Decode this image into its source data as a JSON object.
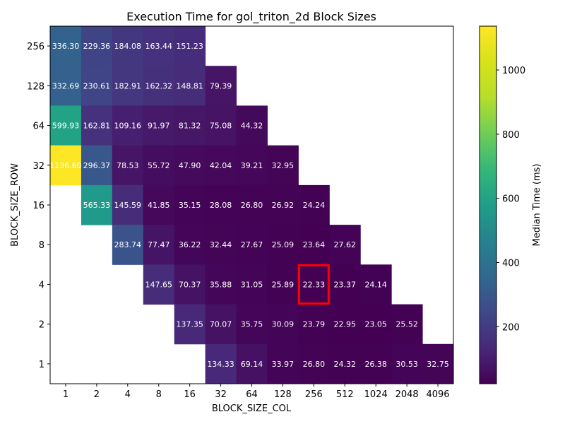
{
  "chart_data": {
    "type": "heatmap",
    "title": "Execution Time for gol_triton_2d Block Sizes",
    "xlabel": "BLOCK_SIZE_COL",
    "ylabel": "BLOCK_SIZE_ROW",
    "x_categories": [
      "1",
      "2",
      "4",
      "8",
      "16",
      "32",
      "64",
      "128",
      "256",
      "512",
      "1024",
      "2048",
      "4096"
    ],
    "y_categories": [
      "256",
      "128",
      "64",
      "32",
      "16",
      "8",
      "4",
      "2",
      "1"
    ],
    "values": [
      [
        336.3,
        229.36,
        184.08,
        163.44,
        151.23,
        null,
        null,
        null,
        null,
        null,
        null,
        null,
        null
      ],
      [
        332.69,
        230.61,
        182.91,
        162.32,
        148.81,
        79.39,
        null,
        null,
        null,
        null,
        null,
        null,
        null
      ],
      [
        599.93,
        162.81,
        109.16,
        91.97,
        81.32,
        75.08,
        44.32,
        null,
        null,
        null,
        null,
        null,
        null
      ],
      [
        1136.6,
        296.37,
        78.53,
        55.72,
        47.9,
        42.04,
        39.21,
        32.95,
        null,
        null,
        null,
        null,
        null
      ],
      [
        null,
        565.33,
        145.59,
        41.85,
        35.15,
        28.08,
        26.8,
        26.92,
        24.24,
        null,
        null,
        null,
        null
      ],
      [
        null,
        null,
        283.74,
        77.47,
        36.22,
        32.44,
        27.67,
        25.09,
        23.64,
        27.62,
        null,
        null,
        null
      ],
      [
        null,
        null,
        null,
        147.65,
        70.37,
        35.88,
        31.05,
        25.89,
        22.33,
        23.37,
        24.14,
        null,
        null
      ],
      [
        null,
        null,
        null,
        null,
        137.35,
        70.07,
        35.75,
        30.09,
        23.79,
        22.95,
        23.05,
        25.52,
        null
      ],
      [
        null,
        null,
        null,
        null,
        null,
        134.33,
        69.14,
        33.97,
        26.8,
        24.32,
        26.38,
        30.53,
        32.75
      ]
    ],
    "cell_labels": [
      [
        "336.30",
        "229.36",
        "184.08",
        "163.44",
        "151.23",
        "",
        "",
        "",
        "",
        "",
        "",
        "",
        ""
      ],
      [
        "332.69",
        "230.61",
        "182.91",
        "162.32",
        "148.81",
        "79.39",
        "",
        "",
        "",
        "",
        "",
        "",
        ""
      ],
      [
        "599.93",
        "162.81",
        "109.16",
        "91.97",
        "81.32",
        "75.08",
        "44.32",
        "",
        "",
        "",
        "",
        "",
        ""
      ],
      [
        "1136.60",
        "296.37",
        "78.53",
        "55.72",
        "47.90",
        "42.04",
        "39.21",
        "32.95",
        "",
        "",
        "",
        "",
        ""
      ],
      [
        "",
        "565.33",
        "145.59",
        "41.85",
        "35.15",
        "28.08",
        "26.80",
        "26.92",
        "24.24",
        "",
        "",
        "",
        ""
      ],
      [
        "",
        "",
        "283.74",
        "77.47",
        "36.22",
        "32.44",
        "27.67",
        "25.09",
        "23.64",
        "27.62",
        "",
        "",
        ""
      ],
      [
        "",
        "",
        "",
        "147.65",
        "70.37",
        "35.88",
        "31.05",
        "25.89",
        "22.33",
        "23.37",
        "24.14",
        "",
        ""
      ],
      [
        "",
        "",
        "",
        "",
        "137.35",
        "70.07",
        "35.75",
        "30.09",
        "23.79",
        "22.95",
        "23.05",
        "25.52",
        ""
      ],
      [
        "",
        "",
        "",
        "",
        "",
        "134.33",
        "69.14",
        "33.97",
        "26.80",
        "24.32",
        "26.38",
        "30.53",
        "32.75"
      ]
    ],
    "highlight": {
      "row": "4",
      "col": "256",
      "color": "#ff0000"
    },
    "colorbar": {
      "label": "Median Time (ms)",
      "colormap": "viridis",
      "min": 22.33,
      "max": 1136.6,
      "ticks": [
        200,
        400,
        600,
        800,
        1000
      ],
      "tick_labels": [
        "200",
        "400",
        "600",
        "800",
        "1000"
      ]
    }
  }
}
